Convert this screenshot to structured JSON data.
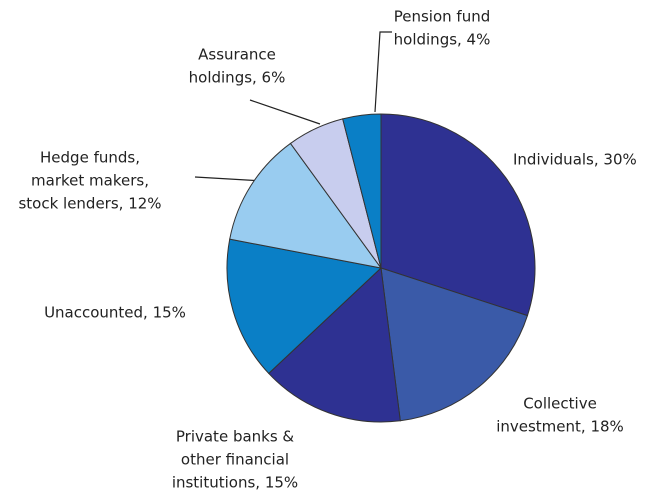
{
  "chart_data": {
    "type": "pie",
    "categories": [
      [
        "Individuals, 30%"
      ],
      [
        "Collective",
        "investment, 18%"
      ],
      [
        "Private banks &",
        "other financial",
        "institutions, 15%"
      ],
      [
        "Unaccounted, 15%"
      ],
      [
        "Hedge funds,",
        "market makers,",
        "stock lenders, 12%"
      ],
      [
        "Assurance",
        "holdings, 6%"
      ],
      [
        "Pension fund",
        "holdings, 4%"
      ]
    ],
    "values": [
      30,
      18,
      15,
      15,
      12,
      6,
      4
    ],
    "colors": [
      "#2e3192",
      "#3a5aa8",
      "#2e3192",
      "#0a7fc6",
      "#99ccf0",
      "#c8cdee",
      "#0a7fc6"
    ]
  }
}
